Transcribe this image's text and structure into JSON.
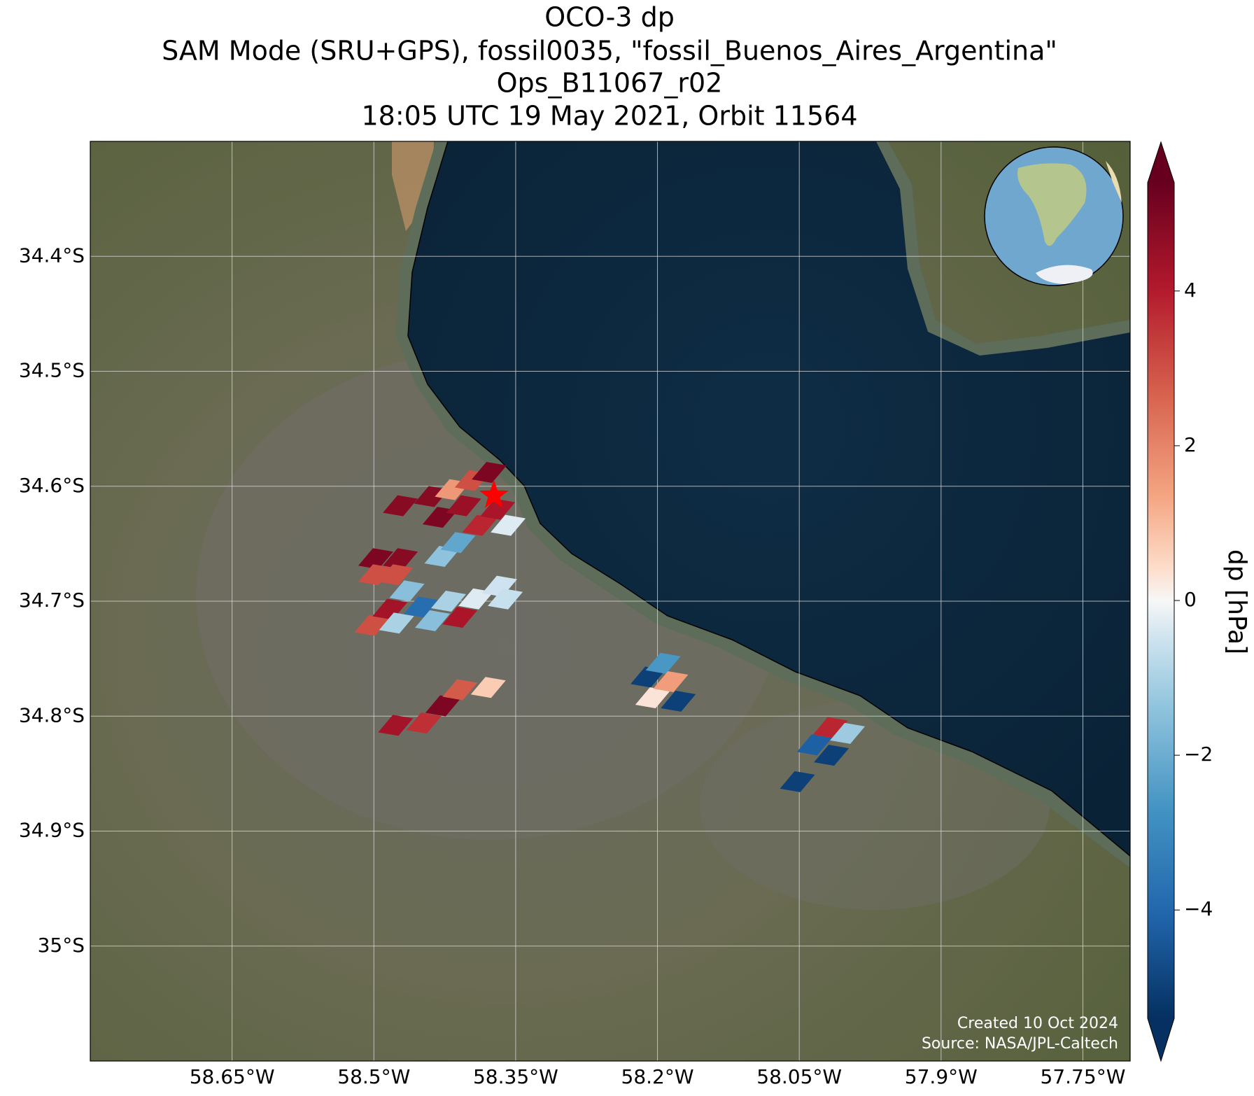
{
  "chart_data": {
    "type": "map",
    "title": [
      "OCO-3 dp",
      "SAM Mode (SRU+GPS), fossil0035, \"fossil_Buenos_Aires_Argentina\"",
      "Ops_B11067_r02",
      "18:05 UTC 19 May 2021, Orbit 11564"
    ],
    "xlim": [
      -58.8,
      -57.7
    ],
    "ylim": [
      -35.1,
      -34.3
    ],
    "grid": true,
    "xticks": [
      {
        "value": -58.65,
        "label": "58.65°W"
      },
      {
        "value": -58.5,
        "label": "58.5°W"
      },
      {
        "value": -58.35,
        "label": "58.35°W"
      },
      {
        "value": -58.2,
        "label": "58.2°W"
      },
      {
        "value": -58.05,
        "label": "58.05°W"
      },
      {
        "value": -57.9,
        "label": "57.9°W"
      },
      {
        "value": -57.75,
        "label": "57.75°W"
      }
    ],
    "yticks": [
      {
        "value": -34.4,
        "label": "34.4°S"
      },
      {
        "value": -34.5,
        "label": "34.5°S"
      },
      {
        "value": -34.6,
        "label": "34.6°S"
      },
      {
        "value": -34.7,
        "label": "34.7°S"
      },
      {
        "value": -34.8,
        "label": "34.8°S"
      },
      {
        "value": -34.9,
        "label": "34.9°S"
      },
      {
        "value": -35.0,
        "label": "35°S"
      }
    ],
    "colorbar": {
      "label": "dp [hPa]",
      "colormap": "RdBu_r",
      "lim": [
        -5.4,
        5.4
      ],
      "ticks": [
        {
          "value": -4,
          "label": "−4"
        },
        {
          "value": -2,
          "label": "−2"
        },
        0,
        2,
        4
      ]
    },
    "target": {
      "lon": -58.373,
      "lat": -34.608,
      "color": "#ff0000"
    },
    "lon": [
      -58.472,
      -58.439,
      -58.417,
      -58.396,
      -58.378,
      -58.43,
      -58.405,
      -58.388,
      -58.369,
      -58.358,
      -58.428,
      -58.411,
      -58.498,
      -58.472,
      -58.498,
      -58.477,
      -58.502,
      -58.483,
      -58.465,
      -58.476,
      -58.45,
      -58.438,
      -58.421,
      -58.409,
      -58.392,
      -58.367,
      -58.361,
      -58.477,
      -58.447,
      -58.427,
      -58.409,
      -58.379,
      -58.21,
      -58.194,
      -58.205,
      -58.186,
      -58.178,
      -58.052,
      -58.034,
      -58.017,
      -58.016,
      -57.999
    ],
    "lat": [
      -34.617,
      -34.609,
      -34.603,
      -34.595,
      -34.588,
      -34.627,
      -34.617,
      -34.634,
      -34.62,
      -34.634,
      -34.661,
      -34.649,
      -34.663,
      -34.663,
      -34.677,
      -34.677,
      -34.721,
      -34.707,
      -34.691,
      -34.719,
      -34.705,
      -34.717,
      -34.7,
      -34.714,
      -34.698,
      -34.687,
      -34.698,
      -34.808,
      -34.806,
      -34.791,
      -34.777,
      -34.775,
      -34.766,
      -34.754,
      -34.784,
      -34.77,
      -34.787,
      -34.857,
      -34.825,
      -34.81,
      -34.834,
      -34.815
    ],
    "dp": [
      4.8,
      4.8,
      1.6,
      3,
      5,
      5,
      4.5,
      3.8,
      4.2,
      -0.3,
      -1.4,
      -2.2,
      5,
      4.8,
      3,
      3,
      3,
      4.3,
      -1.5,
      -1,
      -3.8,
      -1.5,
      -1,
      4.2,
      -0.3,
      -0.5,
      -0.6,
      4.3,
      3.6,
      5,
      2.8,
      0.7,
      -5,
      -2.6,
      0.3,
      1.5,
      -5,
      -5,
      -4.2,
      3.8,
      -5,
      -1.2
    ],
    "credits": [
      "Created 10 Oct 2024",
      "Source: NASA/JPL-Caltech"
    ]
  }
}
